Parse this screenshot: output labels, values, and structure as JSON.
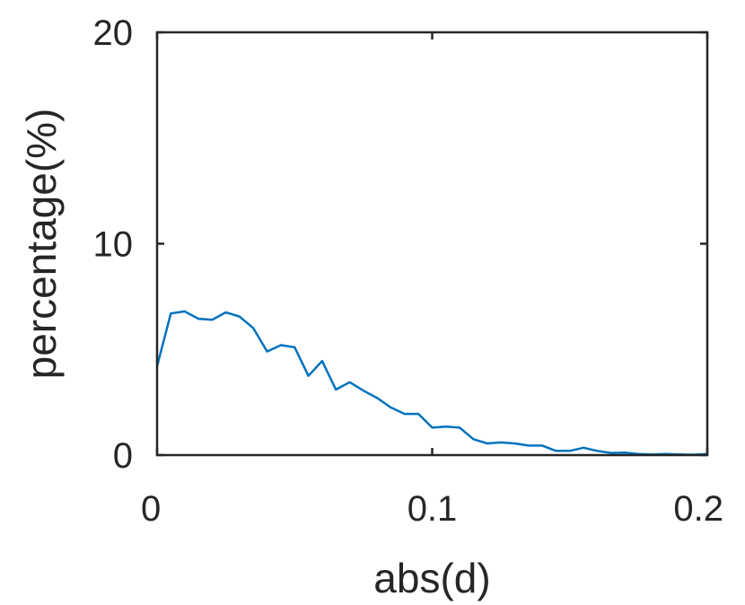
{
  "chart_data": {
    "type": "line",
    "title": "",
    "xlabel": "abs(d)",
    "ylabel": "percentage(%)",
    "xlim": [
      0,
      0.2
    ],
    "ylim": [
      0,
      20
    ],
    "xticks": [
      0,
      0.1,
      0.2
    ],
    "xtick_labels": [
      "0",
      "0.1",
      "0.2"
    ],
    "yticks": [
      0,
      10,
      20
    ],
    "ytick_labels": [
      "0",
      "10",
      "20"
    ],
    "grid": false,
    "series": [
      {
        "color": "#0072BD",
        "x": [
          0,
          0.005,
          0.01,
          0.015,
          0.02,
          0.025,
          0.03,
          0.035,
          0.04,
          0.045,
          0.05,
          0.055,
          0.06,
          0.065,
          0.07,
          0.075,
          0.08,
          0.085,
          0.09,
          0.095,
          0.1,
          0.105,
          0.11,
          0.115,
          0.12,
          0.125,
          0.13,
          0.135,
          0.14,
          0.145,
          0.15,
          0.155,
          0.16,
          0.165,
          0.17,
          0.175,
          0.18,
          0.185,
          0.19,
          0.195,
          0.2
        ],
        "y": [
          4.2,
          6.7,
          6.8,
          6.45,
          6.4,
          6.75,
          6.55,
          6.0,
          4.9,
          5.2,
          5.1,
          3.75,
          4.45,
          3.1,
          3.45,
          3.05,
          2.7,
          2.25,
          1.95,
          1.95,
          1.3,
          1.35,
          1.3,
          0.75,
          0.55,
          0.6,
          0.55,
          0.45,
          0.45,
          0.2,
          0.2,
          0.35,
          0.2,
          0.1,
          0.12,
          0.05,
          0.03,
          0.05,
          0.03,
          0.02,
          0.05
        ]
      }
    ]
  }
}
